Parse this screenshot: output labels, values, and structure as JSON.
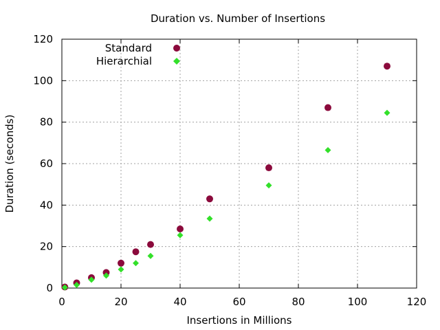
{
  "chart_data": {
    "type": "scatter",
    "title": "Duration vs. Number of Insertions",
    "xlabel": "Insertions in Millions",
    "ylabel": "Duration (seconds)",
    "xlim": [
      0,
      120
    ],
    "ylim": [
      0,
      120
    ],
    "xticks": [
      0,
      20,
      40,
      60,
      80,
      100,
      120
    ],
    "yticks": [
      0,
      20,
      40,
      60,
      80,
      100,
      120
    ],
    "grid": true,
    "legend_position": "top-left",
    "series": [
      {
        "name": "Standard",
        "color": "#8b0a3c",
        "marker": "circle",
        "x": [
          1,
          5,
          10,
          15,
          20,
          25,
          30,
          40,
          50,
          70,
          90,
          110
        ],
        "y": [
          0.5,
          2.5,
          5,
          7.5,
          12,
          17.5,
          21,
          28.5,
          43,
          58,
          87,
          107
        ]
      },
      {
        "name": "Hierarchial",
        "color": "#33e02a",
        "marker": "diamond",
        "x": [
          1,
          5,
          10,
          15,
          20,
          25,
          30,
          40,
          50,
          70,
          90,
          110
        ],
        "y": [
          0.3,
          1.5,
          4,
          6,
          9,
          12,
          15.5,
          25.5,
          33.5,
          49.5,
          66.5,
          84.5
        ]
      }
    ]
  }
}
